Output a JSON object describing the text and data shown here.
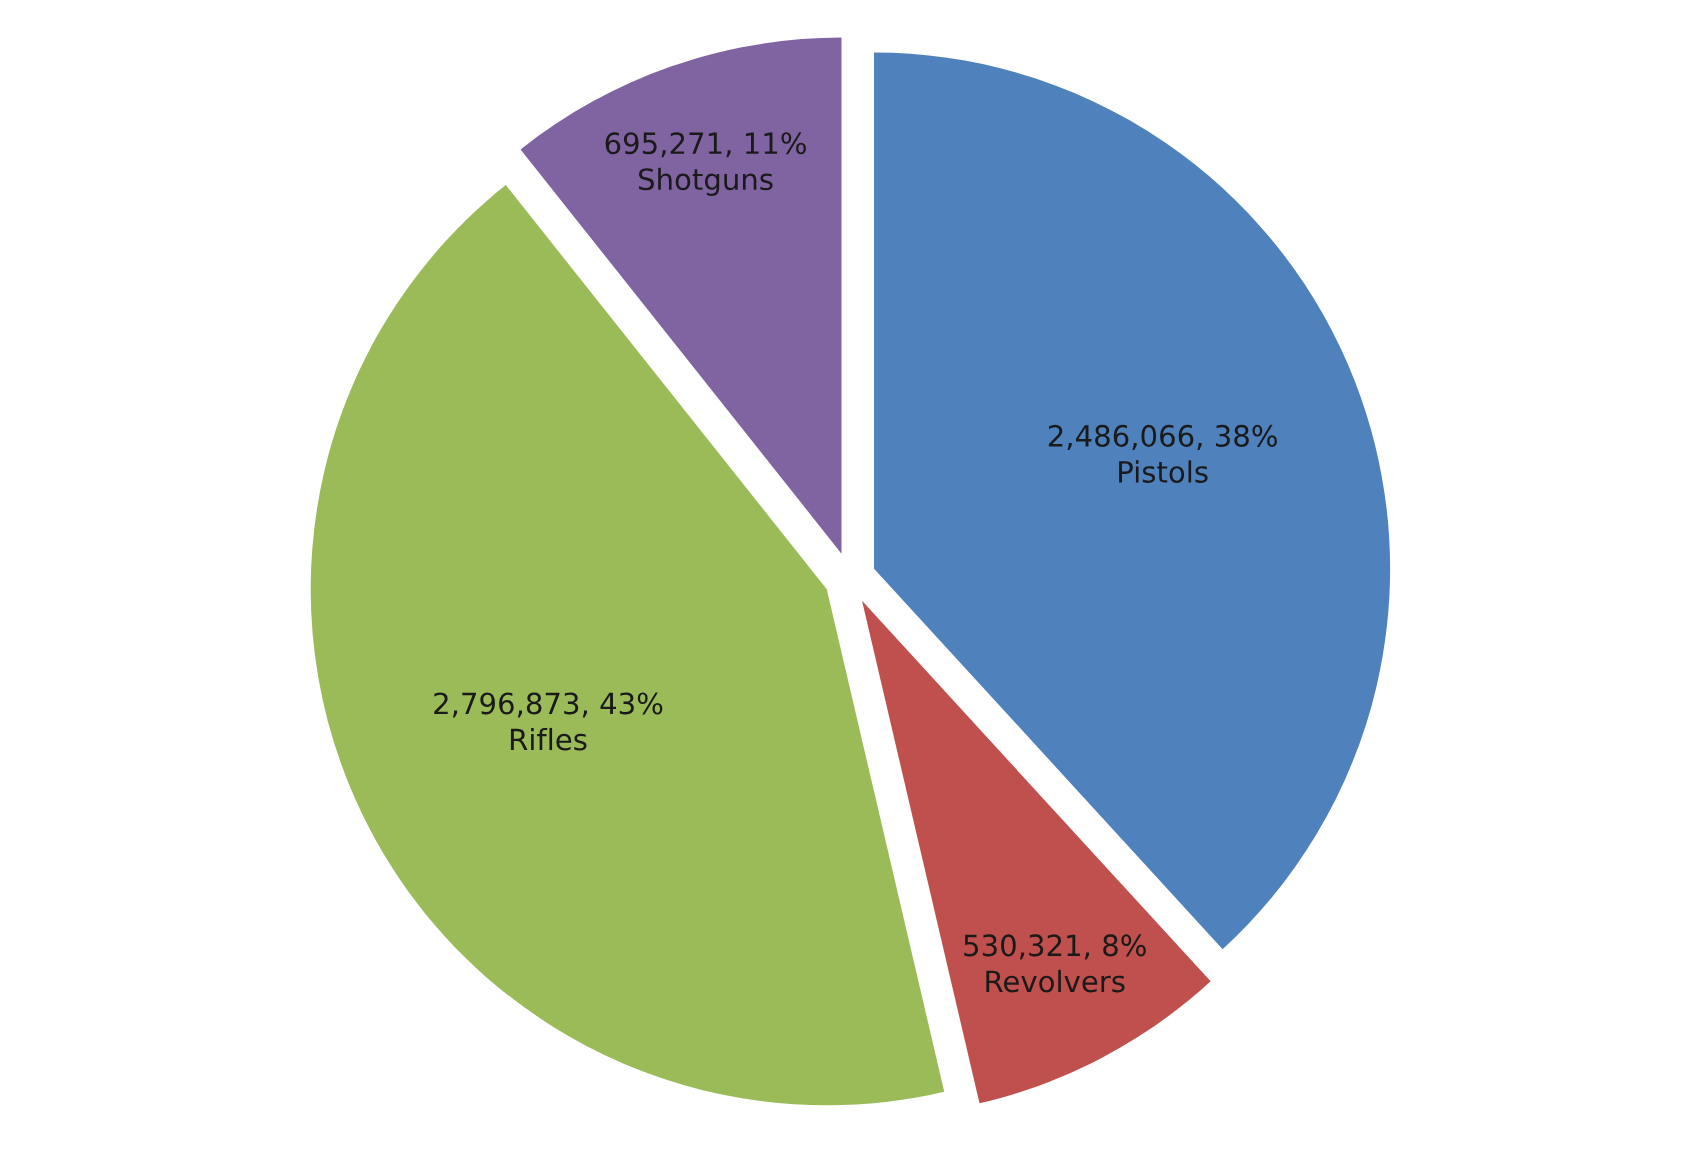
{
  "chart_data": {
    "type": "pie",
    "categories": [
      "Pistols",
      "Revolvers",
      "Rifles",
      "Shotguns"
    ],
    "values": [
      2486066,
      530321,
      2796873,
      695271
    ],
    "colors": [
      "#4f81bd",
      "#c0504d",
      "#9bbb59",
      "#8064a2"
    ],
    "value_labels": [
      "2,486,066, 38%",
      "530,321, 8%",
      "2,796,873, 43%",
      "695,271, 11%"
    ]
  }
}
